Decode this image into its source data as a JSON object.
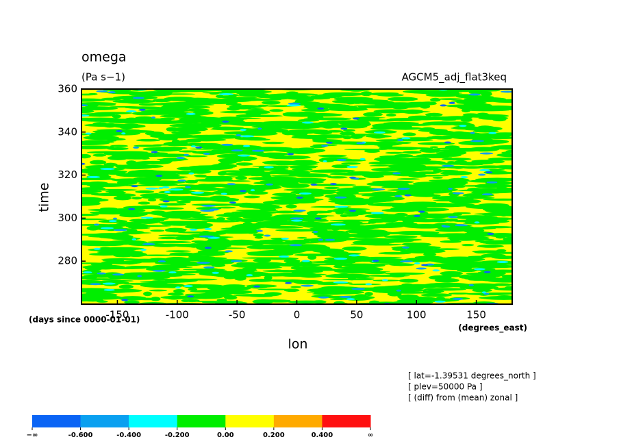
{
  "chart_data": {
    "type": "heatmap",
    "title": "omega",
    "units": "(Pa s−1)",
    "dataset": "AGCM5_adj_flat3keq",
    "x_label": "lon",
    "x_units": "(degrees_east)",
    "y_label": "time",
    "y_units": "(days since 0000-01-01)",
    "xlim": [
      -180,
      180
    ],
    "xticks": [
      -150,
      -100,
      -50,
      0,
      50,
      100,
      150
    ],
    "ylim": [
      260,
      360
    ],
    "yticks": [
      280,
      300,
      320,
      340,
      360
    ],
    "annotations": [
      "[ lat=-1.39531 degrees_north ]",
      "[ plev=50000 Pa ]",
      "[ (diff) from (mean) zonal ]"
    ],
    "colorbar": {
      "colors": [
        "#0a64f5",
        "#0aa0f0",
        "#00ffff",
        "#00ee00",
        "#ffff00",
        "#ffaa00",
        "#ff1010"
      ],
      "labels": [
        "−∞",
        {
          "value": -0.6,
          "label": "-0.600"
        },
        {
          "value": -0.4,
          "label": "-0.400"
        },
        {
          "value": -0.2,
          "label": "-0.200"
        },
        {
          "value": 0,
          "label": "0.00"
        },
        {
          "value": 0.2,
          "label": "0.200"
        },
        {
          "value": 0.4,
          "label": "0.400"
        },
        "∞"
      ]
    }
  }
}
